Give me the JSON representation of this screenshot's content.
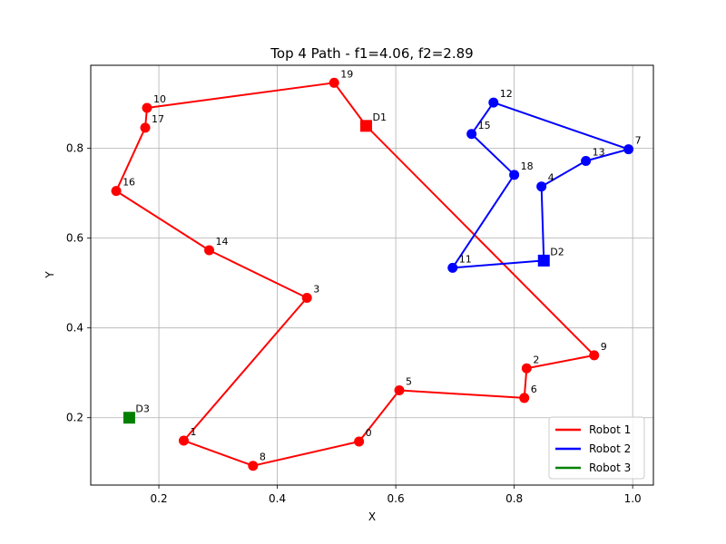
{
  "chart_data": {
    "type": "line",
    "title": "Top 4 Path - f1=4.06, f2=2.89",
    "xlabel": "X",
    "ylabel": "Y",
    "xlim": [
      0.085,
      1.035
    ],
    "ylim": [
      0.05,
      0.985
    ],
    "xticks": [
      0.2,
      0.4,
      0.6,
      0.8,
      1.0
    ],
    "xtick_labels": [
      "0.2",
      "0.4",
      "0.6",
      "0.8",
      "1.0"
    ],
    "yticks": [
      0.2,
      0.4,
      0.6,
      0.8
    ],
    "ytick_labels": [
      "0.2",
      "0.4",
      "0.6",
      "0.8"
    ],
    "grid": true,
    "legend_position": "lower-right",
    "depots": [
      {
        "label": "D1",
        "x": 0.55,
        "y": 0.85,
        "color": "#ff0000"
      },
      {
        "label": "D2",
        "x": 0.85,
        "y": 0.55,
        "color": "#0000ff"
      },
      {
        "label": "D3",
        "x": 0.15,
        "y": 0.2,
        "color": "#008000"
      }
    ],
    "series": [
      {
        "name": "Robot 1",
        "color": "#ff0000",
        "path": [
          "D1",
          "19",
          "10",
          "17",
          "16",
          "14",
          "3",
          "1",
          "8",
          "0",
          "5",
          "6",
          "2",
          "9",
          "D1"
        ]
      },
      {
        "name": "Robot 2",
        "color": "#0000ff",
        "path": [
          "D2",
          "4",
          "13",
          "7",
          "12",
          "15",
          "18",
          "11",
          "D2"
        ]
      },
      {
        "name": "Robot 3",
        "color": "#008000",
        "path": [
          "D3",
          "D3"
        ]
      }
    ],
    "points": [
      {
        "label": "0",
        "x": 0.538,
        "y": 0.147
      },
      {
        "label": "1",
        "x": 0.242,
        "y": 0.149
      },
      {
        "label": "2",
        "x": 0.821,
        "y": 0.31
      },
      {
        "label": "3",
        "x": 0.45,
        "y": 0.467
      },
      {
        "label": "4",
        "x": 0.846,
        "y": 0.715
      },
      {
        "label": "5",
        "x": 0.606,
        "y": 0.261
      },
      {
        "label": "6",
        "x": 0.817,
        "y": 0.244
      },
      {
        "label": "7",
        "x": 0.993,
        "y": 0.798
      },
      {
        "label": "8",
        "x": 0.359,
        "y": 0.093
      },
      {
        "label": "9",
        "x": 0.935,
        "y": 0.339
      },
      {
        "label": "10",
        "x": 0.18,
        "y": 0.89
      },
      {
        "label": "11",
        "x": 0.696,
        "y": 0.534
      },
      {
        "label": "12",
        "x": 0.765,
        "y": 0.902
      },
      {
        "label": "13",
        "x": 0.921,
        "y": 0.772
      },
      {
        "label": "14",
        "x": 0.285,
        "y": 0.573
      },
      {
        "label": "15",
        "x": 0.728,
        "y": 0.832
      },
      {
        "label": "16",
        "x": 0.128,
        "y": 0.705
      },
      {
        "label": "17",
        "x": 0.177,
        "y": 0.846
      },
      {
        "label": "18",
        "x": 0.8,
        "y": 0.741
      },
      {
        "label": "19",
        "x": 0.496,
        "y": 0.946
      }
    ]
  }
}
